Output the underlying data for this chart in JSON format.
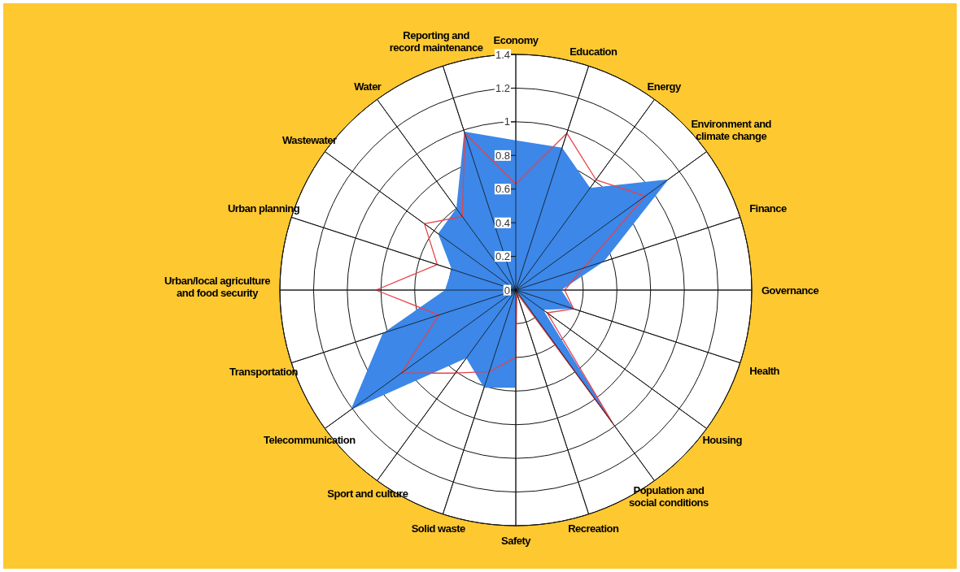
{
  "chart_data": {
    "type": "radar",
    "categories": [
      "Economy",
      "Education",
      "Energy",
      "Environment and climate change",
      "Finance",
      "Governance",
      "Health",
      "Housing",
      "Population and social conditions",
      "Recreation",
      "Safety",
      "Solid waste",
      "Sport and culture",
      "Telecommunication",
      "Transportation",
      "Urban/local agriculture and food security",
      "Urban planning",
      "Wastewater",
      "Water",
      "Reporting and record maintenance"
    ],
    "series": [
      {
        "color": "#3c87e8",
        "values": [
          0.89,
          0.89,
          0.75,
          1.12,
          0.55,
          0.27,
          0.36,
          0.2,
          1.02,
          0,
          0.58,
          0.61,
          0.5,
          1.21,
          0.83,
          0.42,
          0.4,
          0.57,
          0.6,
          0.99
        ]
      },
      {
        "color": "#e8424a",
        "values": [
          0.63,
          0.98,
          0.81,
          0.95,
          0.42,
          0.29,
          0.36,
          0.23,
          0.98,
          0.02,
          0.4,
          0.51,
          0.61,
          0.84,
          0.48,
          0.83,
          0.49,
          0.67,
          0.54,
          0.98
        ]
      }
    ],
    "ylim": [
      0,
      1.4
    ],
    "yticks": [
      0,
      0.2,
      0.4,
      0.6,
      0.8,
      1,
      1.2,
      1.4
    ],
    "grid": true
  }
}
